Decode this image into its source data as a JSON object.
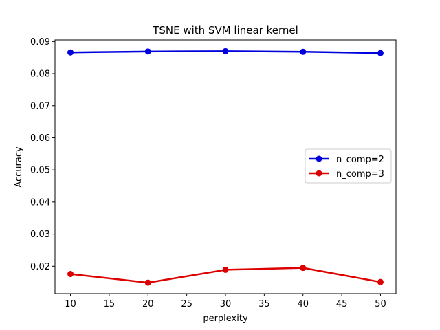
{
  "chart_data": {
    "type": "line",
    "title": "TSNE with SVM linear kernel",
    "xlabel": "perplexity",
    "ylabel": "Accuracy",
    "x": [
      10,
      20,
      30,
      40,
      50
    ],
    "xlim": [
      8,
      52
    ],
    "ylim": [
      0.0115,
      0.0905
    ],
    "xticks": [
      10,
      15,
      20,
      25,
      30,
      35,
      40,
      45,
      50
    ],
    "yticks": [
      0.02,
      0.03,
      0.04,
      0.05,
      0.06,
      0.07,
      0.08,
      0.09
    ],
    "ytick_labels": [
      "0.02",
      "0.03",
      "0.04",
      "0.05",
      "0.06",
      "0.07",
      "0.08",
      "0.09"
    ],
    "grid": false,
    "legend_position": "center-right",
    "series": [
      {
        "name": "n_comp=2",
        "color": "#0000dd",
        "values": [
          0.0866,
          0.0869,
          0.087,
          0.0868,
          0.0864
        ]
      },
      {
        "name": "n_comp=3",
        "color": "#dd0000",
        "values": [
          0.0176,
          0.0149,
          0.0189,
          0.0195,
          0.0151
        ]
      }
    ]
  }
}
